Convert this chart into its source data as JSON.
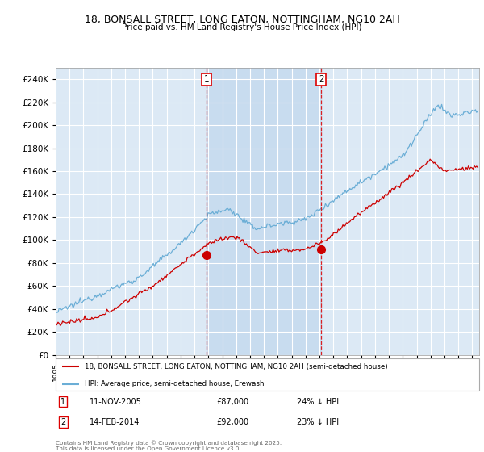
{
  "title": "18, BONSALL STREET, LONG EATON, NOTTINGHAM, NG10 2AH",
  "subtitle": "Price paid vs. HM Land Registry's House Price Index (HPI)",
  "legend_line1": "18, BONSALL STREET, LONG EATON, NOTTINGHAM, NG10 2AH (semi-detached house)",
  "legend_line2": "HPI: Average price, semi-detached house, Erewash",
  "footer": "Contains HM Land Registry data © Crown copyright and database right 2025.\nThis data is licensed under the Open Government Licence v3.0.",
  "hpi_color": "#6BAED6",
  "price_color": "#CC0000",
  "dashed_color": "#DD0000",
  "bg_color": "#DCE9F5",
  "shade_color": "#C8DCEF",
  "ylim": [
    0,
    250000
  ],
  "annotation1": {
    "label": "1",
    "date_x": 2005.87,
    "price": 87000,
    "text": "11-NOV-2005",
    "amount": "£87,000",
    "pct": "24% ↓ HPI"
  },
  "annotation2": {
    "label": "2",
    "date_x": 2014.12,
    "price": 92000,
    "text": "14-FEB-2014",
    "amount": "£92,000",
    "pct": "23% ↓ HPI"
  },
  "xmin": 1995,
  "xmax": 2025.5
}
